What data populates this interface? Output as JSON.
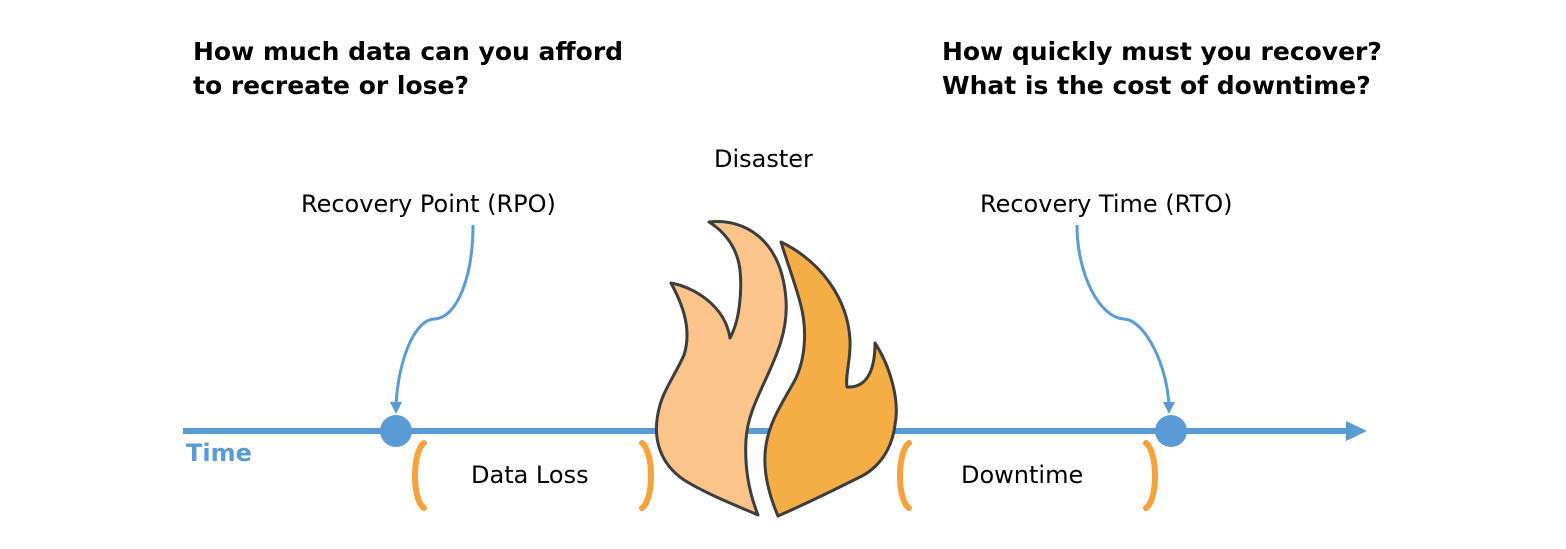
{
  "questions": {
    "left": {
      "line1": "How much data can you afford",
      "line2": "to recreate or lose?"
    },
    "right": {
      "line1": "How quickly must you recover?",
      "line2": "What is the cost of downtime?"
    }
  },
  "labels": {
    "disaster": "Disaster",
    "recovery_point": "Recovery Point (RPO)",
    "recovery_time": "Recovery Time (RTO)",
    "data_loss": "Data Loss",
    "downtime": "Downtime",
    "time": "Time"
  },
  "colors": {
    "timeline": "#5b9bd5",
    "bracket": "#f7a23c",
    "flame_left": "#fac48a",
    "flame_right": "#f5ad46",
    "flame_outline": "#3d3d3d"
  },
  "icons": {
    "disaster": "fire-icon"
  }
}
